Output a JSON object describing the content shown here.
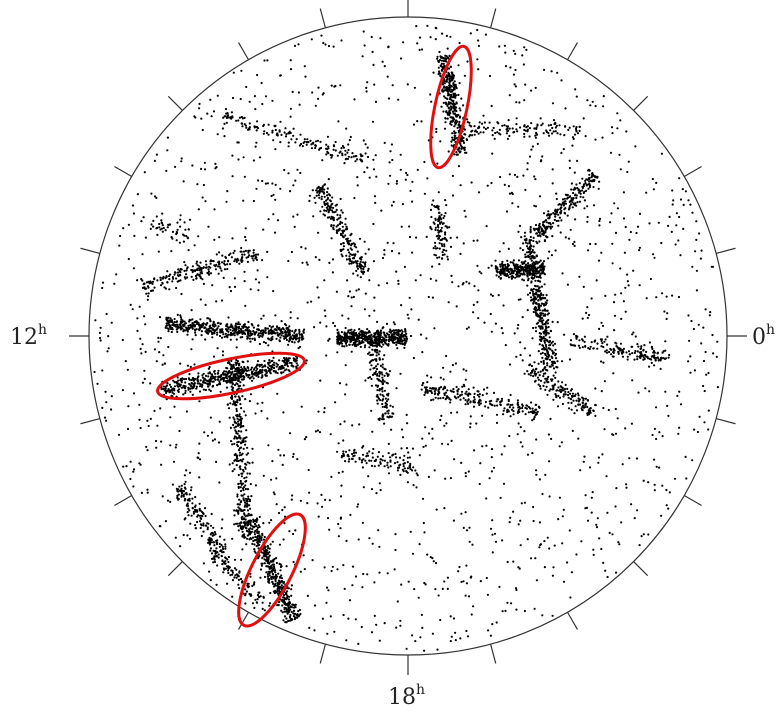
{
  "labels": {
    "left": {
      "text": "12",
      "sup": "h"
    },
    "right": {
      "text": "0",
      "sup": "h"
    },
    "bottom": {
      "text": "18",
      "sup": "h"
    }
  }
}
